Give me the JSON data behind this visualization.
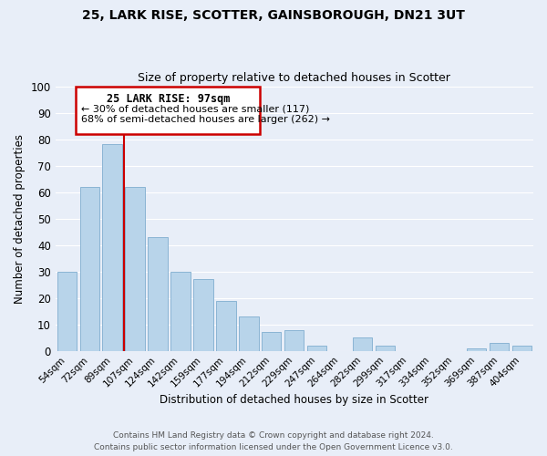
{
  "title1": "25, LARK RISE, SCOTTER, GAINSBOROUGH, DN21 3UT",
  "title2": "Size of property relative to detached houses in Scotter",
  "xlabel": "Distribution of detached houses by size in Scotter",
  "ylabel": "Number of detached properties",
  "categories": [
    "54sqm",
    "72sqm",
    "89sqm",
    "107sqm",
    "124sqm",
    "142sqm",
    "159sqm",
    "177sqm",
    "194sqm",
    "212sqm",
    "229sqm",
    "247sqm",
    "264sqm",
    "282sqm",
    "299sqm",
    "317sqm",
    "334sqm",
    "352sqm",
    "369sqm",
    "387sqm",
    "404sqm"
  ],
  "values": [
    30,
    62,
    78,
    62,
    43,
    30,
    27,
    19,
    13,
    7,
    8,
    2,
    0,
    5,
    2,
    0,
    0,
    0,
    1,
    3,
    2
  ],
  "bar_color": "#b8d4ea",
  "bar_edge_color": "#8ab4d4",
  "redline_color": "#cc0000",
  "annotation_title": "25 LARK RISE: 97sqm",
  "annotation_line1": "← 30% of detached houses are smaller (117)",
  "annotation_line2": "68% of semi-detached houses are larger (262) →",
  "box_color": "#ffffff",
  "box_edge_color": "#cc0000",
  "ylim": [
    0,
    100
  ],
  "footer1": "Contains HM Land Registry data © Crown copyright and database right 2024.",
  "footer2": "Contains public sector information licensed under the Open Government Licence v3.0.",
  "background_color": "#e8eef8",
  "grid_color": "#ffffff"
}
